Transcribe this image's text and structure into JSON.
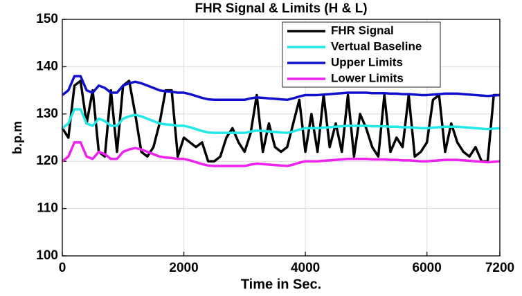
{
  "chart_data": {
    "type": "line",
    "title": "FHR Signal & Limits (H & L)",
    "x_label": "Time in Sec.",
    "y_label": "b.p.m",
    "x": [
      0,
      100,
      200,
      300,
      400,
      500,
      600,
      700,
      800,
      900,
      1000,
      1100,
      1200,
      1300,
      1400,
      1500,
      1600,
      1700,
      1800,
      1900,
      2000,
      2100,
      2200,
      2300,
      2400,
      2500,
      2600,
      2700,
      2800,
      2900,
      3000,
      3100,
      3200,
      3300,
      3400,
      3500,
      3600,
      3700,
      3800,
      3900,
      4000,
      4100,
      4200,
      4300,
      4400,
      4500,
      4600,
      4700,
      4800,
      4900,
      5000,
      5100,
      5200,
      5300,
      5400,
      5500,
      5600,
      5700,
      5800,
      5900,
      6000,
      6100,
      6200,
      6300,
      6400,
      6500,
      6600,
      6700,
      6800,
      6900,
      7000,
      7100,
      7200
    ],
    "series": [
      {
        "name": "FHR Signal",
        "color": "#000000",
        "values": [
          127,
          125,
          136,
          137,
          128,
          135,
          122,
          121,
          135,
          122,
          136,
          137,
          130,
          122,
          121,
          123,
          128,
          135,
          135,
          121,
          125,
          124,
          123,
          124,
          120,
          120,
          121,
          125,
          127,
          124,
          122,
          126,
          134,
          122,
          128,
          123,
          122,
          123,
          128,
          133,
          122,
          130,
          122,
          134,
          123,
          128,
          122,
          134,
          121,
          130,
          127,
          123,
          121,
          134,
          122,
          125,
          123,
          134,
          121,
          122,
          124,
          133,
          134,
          122,
          128,
          124,
          122,
          121,
          123,
          120,
          120,
          134,
          134
        ]
      },
      {
        "name": "Vertual Baseline",
        "color": "#22e8e8",
        "values": [
          127,
          128,
          131,
          131,
          128,
          127.5,
          129,
          128.5,
          127.5,
          127.5,
          129,
          129.5,
          129.8,
          129.5,
          129,
          128.5,
          128,
          127.8,
          127.7,
          127.5,
          127.5,
          127.2,
          126.8,
          126.4,
          126.1,
          126,
          126,
          126,
          126,
          126,
          126,
          126.3,
          126.5,
          126.4,
          126.3,
          126.2,
          126.1,
          126,
          126.3,
          126.7,
          127,
          127,
          127,
          127.1,
          127.2,
          127.3,
          127.4,
          127.5,
          127.5,
          127.5,
          127.5,
          127.4,
          127.4,
          127.4,
          127.3,
          127.3,
          127.2,
          127.2,
          127.1,
          127,
          127,
          127.1,
          127.2,
          127.3,
          127.3,
          127.3,
          127.2,
          127.1,
          127,
          126.9,
          126.8,
          126.9,
          127
        ]
      },
      {
        "name": "Upper Limits",
        "color": "#1010cc",
        "values": [
          134,
          135,
          138,
          138,
          135,
          134.5,
          136,
          135.5,
          134.5,
          134.5,
          136,
          136.5,
          136.8,
          136.5,
          136,
          135.5,
          135,
          134.8,
          134.7,
          134.5,
          134.5,
          134.2,
          133.8,
          133.4,
          133.1,
          133,
          133,
          133,
          133,
          133,
          133,
          133.3,
          133.5,
          133.4,
          133.3,
          133.2,
          133.1,
          133,
          133.3,
          133.7,
          134,
          134,
          134,
          134.1,
          134.2,
          134.3,
          134.4,
          134.5,
          134.5,
          134.5,
          134.5,
          134.4,
          134.4,
          134.4,
          134.3,
          134.3,
          134.2,
          134.2,
          134.1,
          134,
          134,
          134.1,
          134.2,
          134.3,
          134.3,
          134.3,
          134.2,
          134.1,
          134,
          133.9,
          133.8,
          133.9,
          134
        ]
      },
      {
        "name": "Lower Limits",
        "color": "#ee22ee",
        "values": [
          120,
          121,
          124,
          124,
          121,
          120.5,
          122,
          121.5,
          120.5,
          120.5,
          122,
          122.5,
          122.8,
          122.5,
          122,
          121.5,
          121,
          120.8,
          120.7,
          120.5,
          120.5,
          120.2,
          119.8,
          119.4,
          119.1,
          119,
          119,
          119,
          119,
          119,
          119,
          119.3,
          119.5,
          119.4,
          119.3,
          119.2,
          119.1,
          119,
          119.3,
          119.7,
          120,
          120,
          120,
          120.1,
          120.2,
          120.3,
          120.4,
          120.5,
          120.5,
          120.5,
          120.5,
          120.4,
          120.4,
          120.4,
          120.3,
          120.3,
          120.2,
          120.2,
          120.1,
          120,
          120,
          120.1,
          120.2,
          120.3,
          120.3,
          120.3,
          120.2,
          120.1,
          120,
          119.9,
          119.8,
          119.9,
          120
        ]
      }
    ],
    "xlim": [
      0,
      7200
    ],
    "xticks": [
      0,
      2000,
      4000,
      6000,
      7200
    ],
    "ylim": [
      100,
      150
    ],
    "yticks": [
      100,
      110,
      120,
      130,
      140,
      150
    ],
    "grid": true,
    "legend": "upper right"
  }
}
